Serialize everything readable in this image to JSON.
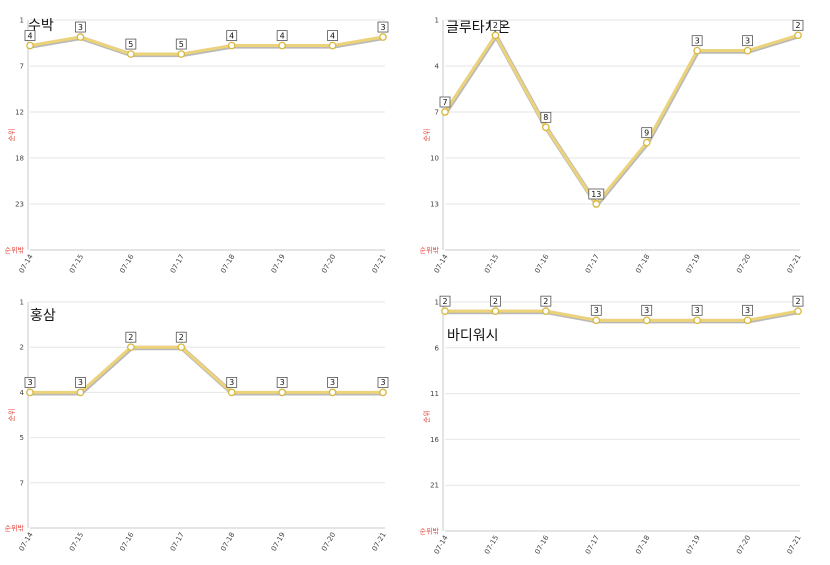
{
  "colors": {
    "line": "#ecd37a",
    "line_shadow": "#b9b9b9",
    "point_stroke": "#d9b73a",
    "axis_label": "#e8473f",
    "grid": "#e6e6e6"
  },
  "chart_data": [
    {
      "type": "line",
      "title": "수박",
      "ylabel": "순위",
      "yaxis_inverted": true,
      "ylim": [
        1,
        28
      ],
      "yticks": [
        1,
        7,
        12,
        18,
        23
      ],
      "ybottom_label": "순위밖",
      "categories": [
        "07-14",
        "07-15",
        "07-16",
        "07-17",
        "07-18",
        "07-19",
        "07-20",
        "07-21"
      ],
      "series": [
        {
          "values": [
            4,
            3,
            5,
            5,
            4,
            4,
            4,
            3
          ]
        }
      ],
      "grid": true
    },
    {
      "type": "line",
      "title": "글루타치온",
      "ylabel": "순위",
      "yaxis_inverted": true,
      "ylim": [
        1,
        16
      ],
      "yticks": [
        1,
        4,
        7,
        10,
        13
      ],
      "ybottom_label": "순위밖",
      "categories": [
        "07-14",
        "07-15",
        "07-16",
        "07-17",
        "07-18",
        "07-19",
        "07-20",
        "07-21"
      ],
      "series": [
        {
          "values": [
            7,
            2,
            8,
            13,
            9,
            3,
            3,
            2
          ]
        }
      ],
      "grid": true
    },
    {
      "type": "line",
      "title": "홍삼",
      "ylabel": "순위",
      "yaxis_inverted": true,
      "ylim": [
        1,
        6
      ],
      "yticks": [
        "1",
        "2",
        "4",
        "5",
        "7"
      ],
      "ybottom_label": "순위밖",
      "categories": [
        "07-14",
        "07-15",
        "07-16",
        "07-17",
        "07-18",
        "07-19",
        "07-20",
        "07-21"
      ],
      "series": [
        {
          "values": [
            3,
            3,
            2,
            2,
            3,
            3,
            3,
            3
          ]
        }
      ],
      "grid": true
    },
    {
      "type": "line",
      "title": "바디워시",
      "ylabel": "순위",
      "yaxis_inverted": true,
      "ylim": [
        1,
        26
      ],
      "yticks": [
        1,
        6,
        11,
        16,
        21
      ],
      "ybottom_label": "순위밖",
      "categories": [
        "07-14",
        "07-15",
        "07-16",
        "07-17",
        "07-18",
        "07-19",
        "07-20",
        "07-21"
      ],
      "series": [
        {
          "values": [
            2,
            2,
            2,
            3,
            3,
            3,
            3,
            2
          ]
        }
      ],
      "grid": true
    }
  ]
}
